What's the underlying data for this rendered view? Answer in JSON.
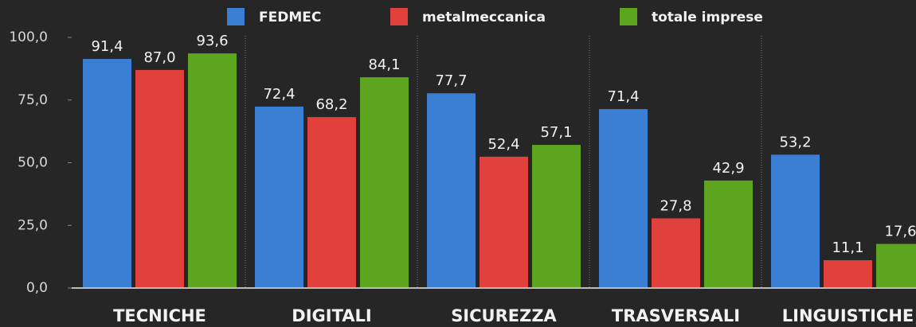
{
  "chart_data": {
    "type": "bar",
    "categories": [
      "TECNICHE",
      "DIGITALI",
      "SICUREZZA",
      "TRASVERSALI",
      "LINGUISTICHE"
    ],
    "series": [
      {
        "name": "FEDMEC",
        "color": "#3b7fd4",
        "values": [
          91.4,
          72.4,
          77.7,
          71.4,
          53.2
        ],
        "value_labels": [
          "91,4",
          "72,4",
          "77,7",
          "71,4",
          "53,2"
        ]
      },
      {
        "name": "metalmeccanica",
        "color": "#e2403d",
        "values": [
          87.0,
          68.2,
          52.4,
          27.8,
          11.1
        ],
        "value_labels": [
          "87,0",
          "68,2",
          "52,4",
          "27,8",
          "11,1"
        ]
      },
      {
        "name": "totale imprese",
        "color": "#5ea51f",
        "values": [
          93.6,
          84.1,
          57.1,
          42.9,
          17.6
        ],
        "value_labels": [
          "93,6",
          "84,1",
          "57,1",
          "42,9",
          "17,6"
        ]
      }
    ],
    "ylim": [
      0,
      100
    ],
    "yticks": [
      {
        "value": 0,
        "label": "0,0"
      },
      {
        "value": 25,
        "label": "25,0"
      },
      {
        "value": 50,
        "label": "50,0"
      },
      {
        "value": 75,
        "label": "75,0"
      },
      {
        "value": 100,
        "label": "100,0"
      }
    ]
  }
}
